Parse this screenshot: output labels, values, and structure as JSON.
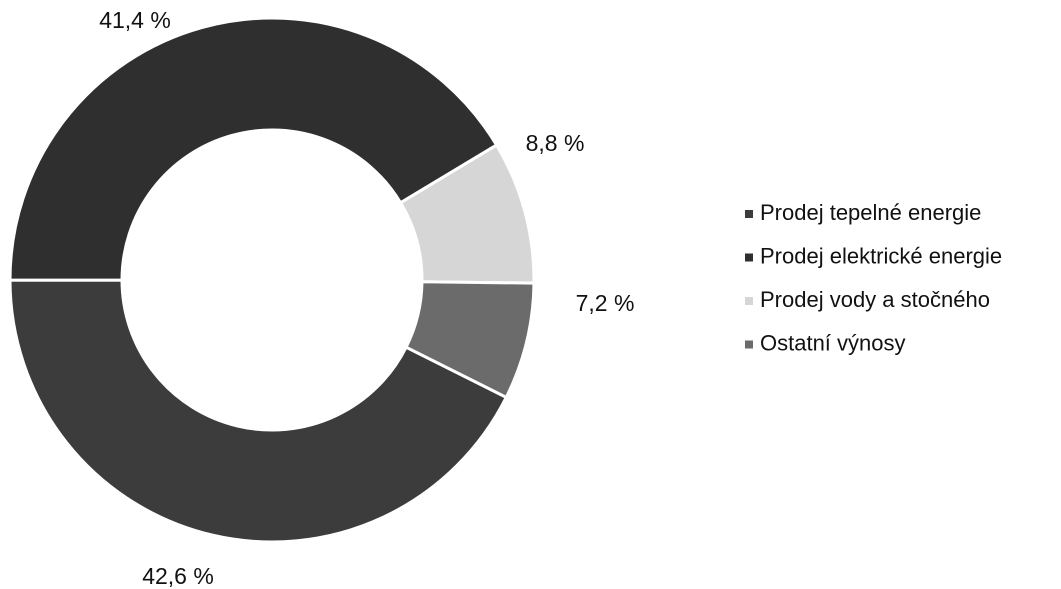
{
  "chart_data": {
    "type": "donut",
    "categories": [
      "Prodej tepelné energie",
      "Prodej elektrické energie",
      "Prodej vody a stočného",
      "Ostatní výnosy"
    ],
    "values": [
      42.6,
      41.4,
      8.8,
      7.2
    ],
    "value_labels": [
      "42,6 %",
      "41,4 %",
      "8,8 %",
      "7,2 %"
    ],
    "colors": [
      "#3c3c3c",
      "#2f2f2f",
      "#d6d6d6",
      "#6b6b6b"
    ],
    "legend": "right"
  }
}
